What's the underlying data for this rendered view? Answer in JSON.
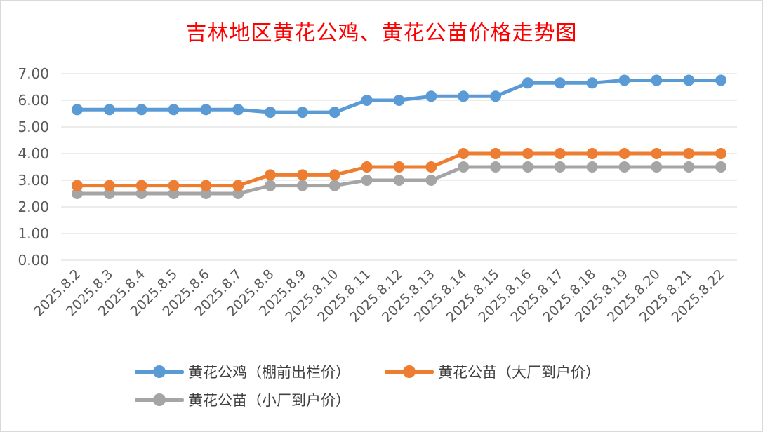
{
  "chart_data": {
    "type": "line",
    "title": "吉林地区黄花公鸡、黄花公苗价格走势图",
    "categories": [
      "2025.8.2",
      "2025.8.3",
      "2025.8.4",
      "2025.8.5",
      "2025.8.6",
      "2025.8.7",
      "2025.8.8",
      "2025.8.9",
      "2025.8.10",
      "2025.8.11",
      "2025.8.12",
      "2025.8.13",
      "2025.8.14",
      "2025.8.15",
      "2025.8.16",
      "2025.8.17",
      "2025.8.18",
      "2025.8.19",
      "2025.8.20",
      "2025.8.21",
      "2025.8.22"
    ],
    "series": [
      {
        "name": "黄花公鸡（棚前出栏价）",
        "color": "#5b9bd5",
        "values": [
          5.65,
          5.65,
          5.65,
          5.65,
          5.65,
          5.65,
          5.55,
          5.55,
          5.55,
          6.0,
          6.0,
          6.15,
          6.15,
          6.15,
          6.65,
          6.65,
          6.65,
          6.75,
          6.75,
          6.75,
          6.75
        ]
      },
      {
        "name": "黄花公苗（大厂到户价）",
        "color": "#ed7d31",
        "values": [
          2.8,
          2.8,
          2.8,
          2.8,
          2.8,
          2.8,
          3.2,
          3.2,
          3.2,
          3.5,
          3.5,
          3.5,
          4.0,
          4.0,
          4.0,
          4.0,
          4.0,
          4.0,
          4.0,
          4.0,
          4.0
        ]
      },
      {
        "name": "黄花公苗（小厂到户价）",
        "color": "#a5a5a5",
        "values": [
          2.5,
          2.5,
          2.5,
          2.5,
          2.5,
          2.5,
          2.8,
          2.8,
          2.8,
          3.0,
          3.0,
          3.0,
          3.5,
          3.5,
          3.5,
          3.5,
          3.5,
          3.5,
          3.5,
          3.5,
          3.5
        ]
      }
    ],
    "yticks": [
      "0.00",
      "1.00",
      "2.00",
      "3.00",
      "4.00",
      "5.00",
      "6.00",
      "7.00"
    ],
    "ylim": [
      0,
      7
    ],
    "xlabel": "",
    "ylabel": "",
    "grid": true,
    "legend_position": "bottom"
  }
}
